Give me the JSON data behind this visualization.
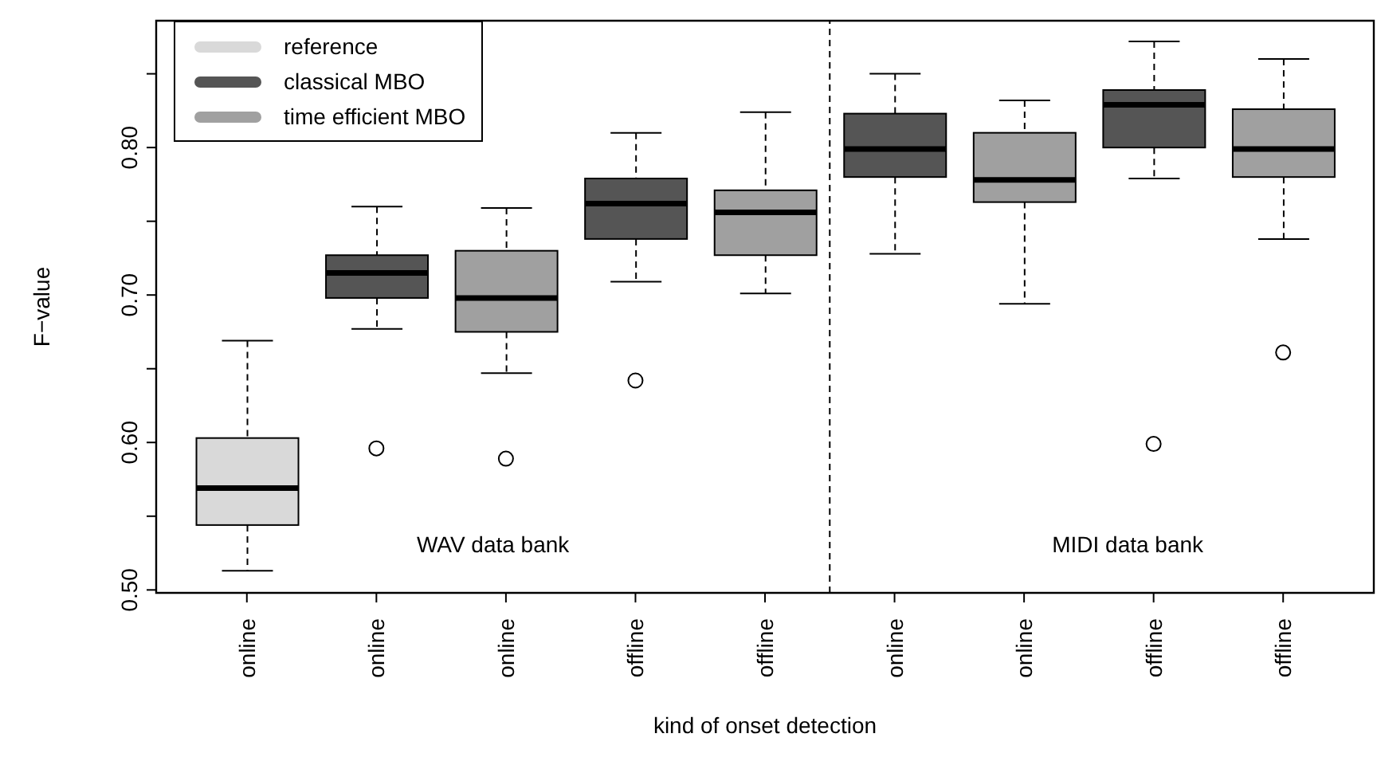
{
  "chart_data": {
    "type": "box",
    "xlabel": "kind of onset detection",
    "ylabel": "F−value",
    "categories": [
      "online",
      "online",
      "online",
      "offline",
      "offline",
      "online",
      "online",
      "offline",
      "offline"
    ],
    "ylim": [
      0.498,
      0.886
    ],
    "yticks": [
      {
        "value": 0.5,
        "label": "0.50"
      },
      {
        "value": 0.55,
        "label": null
      },
      {
        "value": 0.6,
        "label": "0.60"
      },
      {
        "value": 0.65,
        "label": null
      },
      {
        "value": 0.7,
        "label": "0.70"
      },
      {
        "value": 0.75,
        "label": null
      },
      {
        "value": 0.8,
        "label": "0.80"
      },
      {
        "value": 0.85,
        "label": null
      }
    ],
    "series": [
      {
        "name": "reference",
        "color": "#d9d9d9",
        "boxes": [
          {
            "low": 0.513,
            "q1": 0.544,
            "median": 0.569,
            "q3": 0.603,
            "high": 0.669
          },
          null,
          null,
          null,
          null,
          null,
          null,
          null,
          null
        ]
      },
      {
        "name": "classical MBO",
        "color": "#555555",
        "boxes": [
          null,
          {
            "low": 0.677,
            "q1": 0.698,
            "median": 0.715,
            "q3": 0.727,
            "high": 0.76,
            "outliers": [
              0.596
            ]
          },
          null,
          {
            "low": 0.709,
            "q1": 0.738,
            "median": 0.762,
            "q3": 0.779,
            "high": 0.81,
            "outliers": [
              0.642
            ]
          },
          null,
          {
            "low": 0.728,
            "q1": 0.78,
            "median": 0.799,
            "q3": 0.823,
            "high": 0.85
          },
          null,
          {
            "low": 0.779,
            "q1": 0.8,
            "median": 0.829,
            "q3": 0.839,
            "high": 0.872,
            "outliers": [
              0.599
            ]
          },
          null
        ]
      },
      {
        "name": "time efficient MBO",
        "color": "#a0a0a0",
        "boxes": [
          null,
          null,
          {
            "low": 0.647,
            "q1": 0.675,
            "median": 0.698,
            "q3": 0.73,
            "high": 0.759,
            "outliers": [
              0.589
            ]
          },
          null,
          {
            "low": 0.701,
            "q1": 0.727,
            "median": 0.756,
            "q3": 0.771,
            "high": 0.824
          },
          null,
          {
            "low": 0.694,
            "q1": 0.763,
            "median": 0.778,
            "q3": 0.81,
            "high": 0.832
          },
          null,
          {
            "low": 0.738,
            "q1": 0.78,
            "median": 0.799,
            "q3": 0.826,
            "high": 0.86,
            "outliers": [
              0.661
            ]
          }
        ]
      }
    ],
    "annotations": [
      "WAV data bank",
      "MIDI data bank"
    ],
    "legend": "top left",
    "grid": false
  }
}
